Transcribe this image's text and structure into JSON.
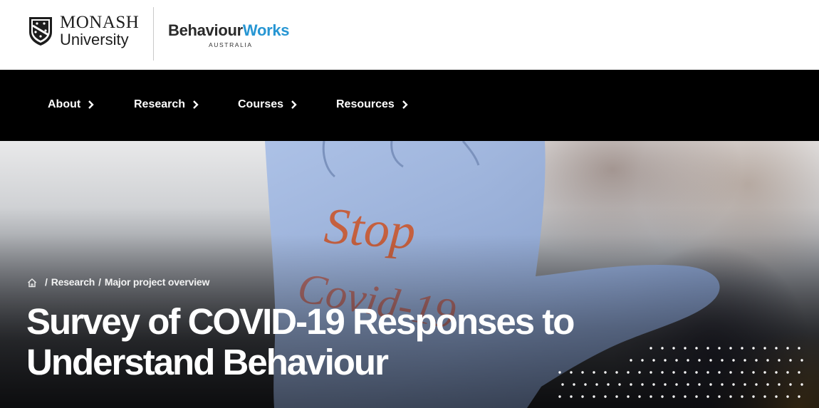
{
  "header": {
    "monash_logo": {
      "line1": "MONASH",
      "line2": "University",
      "icon": "monash-crest-icon"
    },
    "bw_logo": {
      "part1": "Behaviour",
      "part2": "Works",
      "subtitle": "AUSTRALIA",
      "accent_color": "#2796d3"
    }
  },
  "nav": {
    "items": [
      {
        "label": "About"
      },
      {
        "label": "Research"
      },
      {
        "label": "Courses"
      },
      {
        "label": "Resources"
      }
    ],
    "chevron_icon": "chevron-right-icon",
    "background": "#000000"
  },
  "hero": {
    "breadcrumb": {
      "home_icon": "home-icon",
      "separator": "/",
      "items": [
        "Research",
        "Major project overview"
      ]
    },
    "title_line1": "Survey of COVID-19 Responses to",
    "title_line2": "Understand Behaviour",
    "image_glove_text": "Stop COVID-19"
  }
}
